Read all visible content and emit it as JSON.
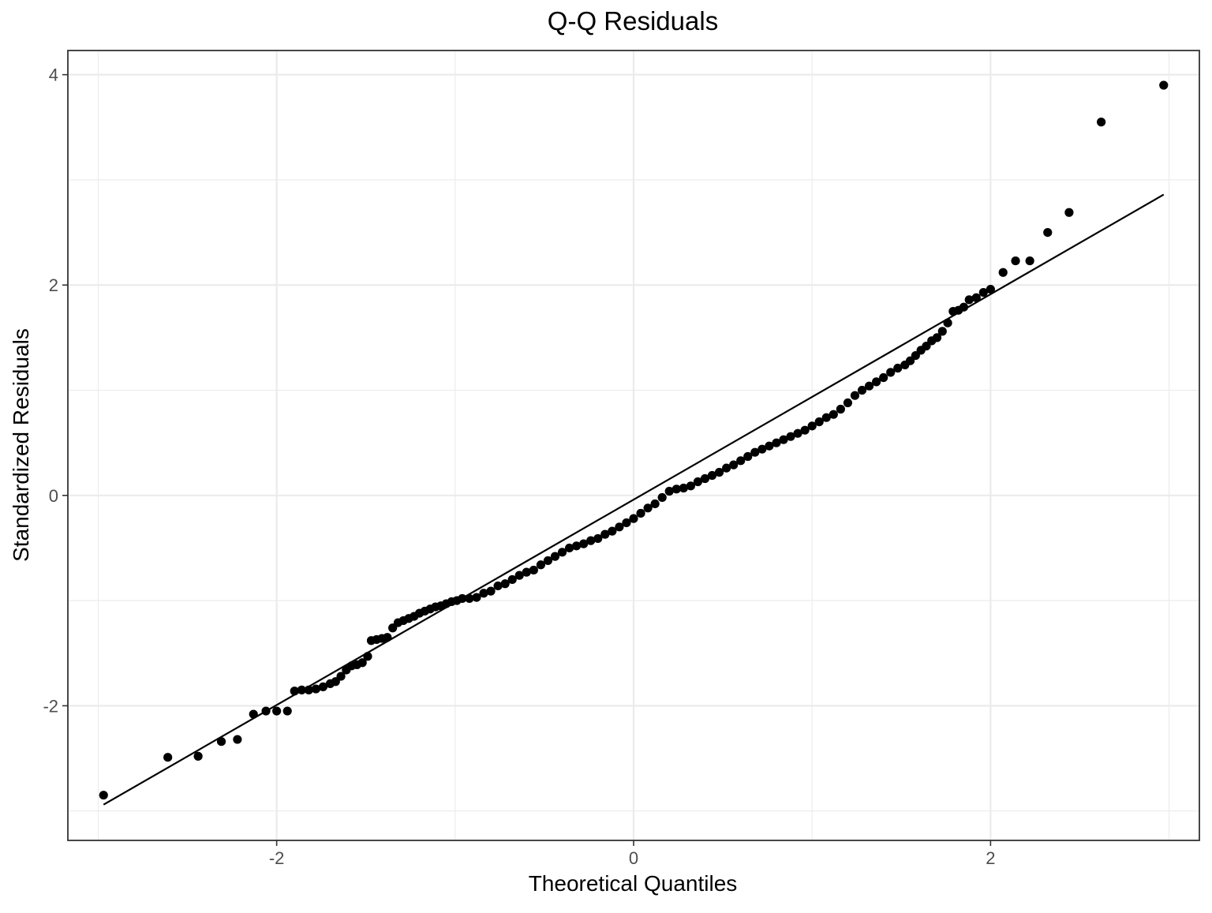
{
  "chart_data": {
    "type": "scatter",
    "title": "Q-Q Residuals",
    "xlabel": "Theoretical Quantiles",
    "ylabel": "Standardized Residuals",
    "xlim": [
      -3.17,
      3.17
    ],
    "ylim": [
      -3.28,
      4.23
    ],
    "x_ticks": [
      -2,
      0,
      2
    ],
    "x_tick_labels": [
      "-2",
      "0",
      "2"
    ],
    "y_ticks": [
      -2,
      0,
      2,
      4
    ],
    "y_tick_labels": [
      "-2",
      "0",
      "2",
      "4"
    ],
    "grid": true,
    "reference_line": {
      "x": [
        -2.97,
        2.97
      ],
      "y": [
        -2.94,
        2.86
      ]
    },
    "points": [
      [
        -2.97,
        -2.85
      ],
      [
        -2.61,
        -2.49
      ],
      [
        -2.44,
        -2.48
      ],
      [
        -2.31,
        -2.34
      ],
      [
        -2.22,
        -2.32
      ],
      [
        -2.13,
        -2.08
      ],
      [
        -2.06,
        -2.05
      ],
      [
        -2.0,
        -2.05
      ],
      [
        -1.94,
        -2.05
      ],
      [
        -1.9,
        -1.86
      ],
      [
        -1.86,
        -1.85
      ],
      [
        -1.82,
        -1.85
      ],
      [
        -1.78,
        -1.84
      ],
      [
        -1.74,
        -1.82
      ],
      [
        -1.7,
        -1.79
      ],
      [
        -1.67,
        -1.77
      ],
      [
        -1.64,
        -1.72
      ],
      [
        -1.61,
        -1.66
      ],
      [
        -1.58,
        -1.62
      ],
      [
        -1.55,
        -1.61
      ],
      [
        -1.52,
        -1.59
      ],
      [
        -1.49,
        -1.53
      ],
      [
        -1.47,
        -1.38
      ],
      [
        -1.44,
        -1.37
      ],
      [
        -1.41,
        -1.36
      ],
      [
        -1.38,
        -1.35
      ],
      [
        -1.35,
        -1.26
      ],
      [
        -1.32,
        -1.21
      ],
      [
        -1.29,
        -1.19
      ],
      [
        -1.26,
        -1.17
      ],
      [
        -1.23,
        -1.15
      ],
      [
        -1.2,
        -1.12
      ],
      [
        -1.17,
        -1.1
      ],
      [
        -1.14,
        -1.08
      ],
      [
        -1.11,
        -1.06
      ],
      [
        -1.08,
        -1.05
      ],
      [
        -1.05,
        -1.03
      ],
      [
        -1.02,
        -1.01
      ],
      [
        -0.99,
        -1.0
      ],
      [
        -0.96,
        -0.98
      ],
      [
        -0.92,
        -0.98
      ],
      [
        -0.88,
        -0.97
      ],
      [
        -0.84,
        -0.93
      ],
      [
        -0.8,
        -0.91
      ],
      [
        -0.76,
        -0.86
      ],
      [
        -0.72,
        -0.84
      ],
      [
        -0.68,
        -0.8
      ],
      [
        -0.64,
        -0.76
      ],
      [
        -0.6,
        -0.73
      ],
      [
        -0.56,
        -0.71
      ],
      [
        -0.52,
        -0.66
      ],
      [
        -0.48,
        -0.62
      ],
      [
        -0.44,
        -0.58
      ],
      [
        -0.4,
        -0.54
      ],
      [
        -0.36,
        -0.5
      ],
      [
        -0.32,
        -0.48
      ],
      [
        -0.28,
        -0.46
      ],
      [
        -0.24,
        -0.43
      ],
      [
        -0.2,
        -0.41
      ],
      [
        -0.16,
        -0.37
      ],
      [
        -0.12,
        -0.34
      ],
      [
        -0.08,
        -0.3
      ],
      [
        -0.04,
        -0.26
      ],
      [
        0.0,
        -0.22
      ],
      [
        0.04,
        -0.17
      ],
      [
        0.08,
        -0.12
      ],
      [
        0.12,
        -0.08
      ],
      [
        0.16,
        -0.02
      ],
      [
        0.2,
        0.04
      ],
      [
        0.24,
        0.06
      ],
      [
        0.28,
        0.07
      ],
      [
        0.32,
        0.09
      ],
      [
        0.36,
        0.13
      ],
      [
        0.4,
        0.16
      ],
      [
        0.44,
        0.19
      ],
      [
        0.48,
        0.22
      ],
      [
        0.52,
        0.26
      ],
      [
        0.56,
        0.29
      ],
      [
        0.6,
        0.33
      ],
      [
        0.64,
        0.37
      ],
      [
        0.68,
        0.41
      ],
      [
        0.72,
        0.44
      ],
      [
        0.76,
        0.47
      ],
      [
        0.8,
        0.5
      ],
      [
        0.84,
        0.53
      ],
      [
        0.88,
        0.56
      ],
      [
        0.92,
        0.59
      ],
      [
        0.96,
        0.62
      ],
      [
        1.0,
        0.66
      ],
      [
        1.04,
        0.7
      ],
      [
        1.08,
        0.74
      ],
      [
        1.12,
        0.77
      ],
      [
        1.16,
        0.82
      ],
      [
        1.2,
        0.88
      ],
      [
        1.24,
        0.95
      ],
      [
        1.28,
        1.0
      ],
      [
        1.32,
        1.04
      ],
      [
        1.36,
        1.08
      ],
      [
        1.4,
        1.12
      ],
      [
        1.44,
        1.17
      ],
      [
        1.48,
        1.21
      ],
      [
        1.52,
        1.24
      ],
      [
        1.55,
        1.28
      ],
      [
        1.58,
        1.33
      ],
      [
        1.61,
        1.38
      ],
      [
        1.64,
        1.42
      ],
      [
        1.67,
        1.47
      ],
      [
        1.7,
        1.5
      ],
      [
        1.73,
        1.56
      ],
      [
        1.76,
        1.64
      ],
      [
        1.79,
        1.75
      ],
      [
        1.82,
        1.76
      ],
      [
        1.85,
        1.79
      ],
      [
        1.88,
        1.86
      ],
      [
        1.92,
        1.88
      ],
      [
        1.96,
        1.93
      ],
      [
        2.0,
        1.96
      ],
      [
        2.07,
        2.12
      ],
      [
        2.14,
        2.23
      ],
      [
        2.22,
        2.23
      ],
      [
        2.32,
        2.5
      ],
      [
        2.44,
        2.69
      ],
      [
        2.62,
        3.55
      ],
      [
        2.97,
        3.9
      ]
    ]
  }
}
